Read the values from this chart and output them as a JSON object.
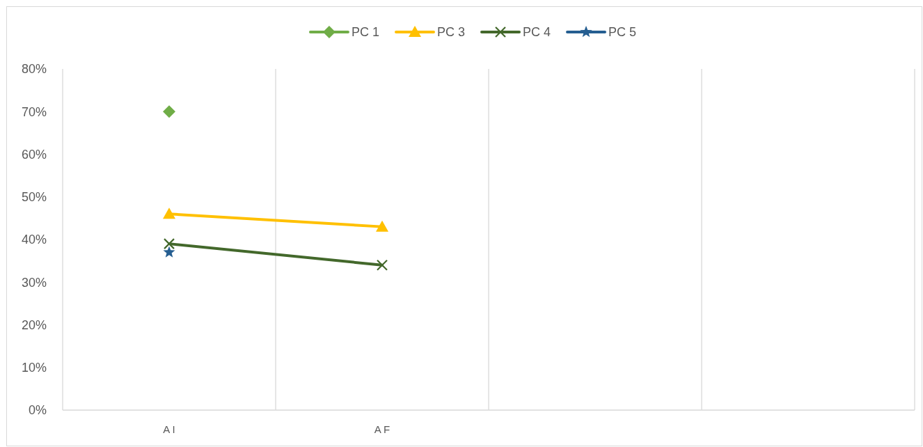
{
  "chart_data": {
    "type": "line",
    "categories": [
      "A I",
      "A F",
      null,
      null
    ],
    "series": [
      {
        "name": "PC 1",
        "color": "#70ad47",
        "marker": "diamond",
        "values": [
          70,
          null,
          null,
          null
        ]
      },
      {
        "name": "PC 3",
        "color": "#ffc000",
        "marker": "triangle",
        "values": [
          46,
          43,
          null,
          null
        ]
      },
      {
        "name": "PC 4",
        "color": "#43682b",
        "marker": "cross",
        "values": [
          39,
          34,
          null,
          null
        ]
      },
      {
        "name": "PC 5",
        "color": "#255e91",
        "marker": "star",
        "values": [
          37,
          null,
          null,
          null
        ]
      }
    ],
    "ylim": [
      0,
      80
    ],
    "yticks": [
      {
        "value": 0,
        "label": "0%"
      },
      {
        "value": 10,
        "label": "10%"
      },
      {
        "value": 20,
        "label": "20%"
      },
      {
        "value": 30,
        "label": "30%"
      },
      {
        "value": 40,
        "label": "40%"
      },
      {
        "value": 50,
        "label": "50%"
      },
      {
        "value": 60,
        "label": "60%"
      },
      {
        "value": 70,
        "label": "70%"
      },
      {
        "value": 80,
        "label": "80%"
      }
    ],
    "grid": "x",
    "legend": "top",
    "line_style": "solid"
  }
}
